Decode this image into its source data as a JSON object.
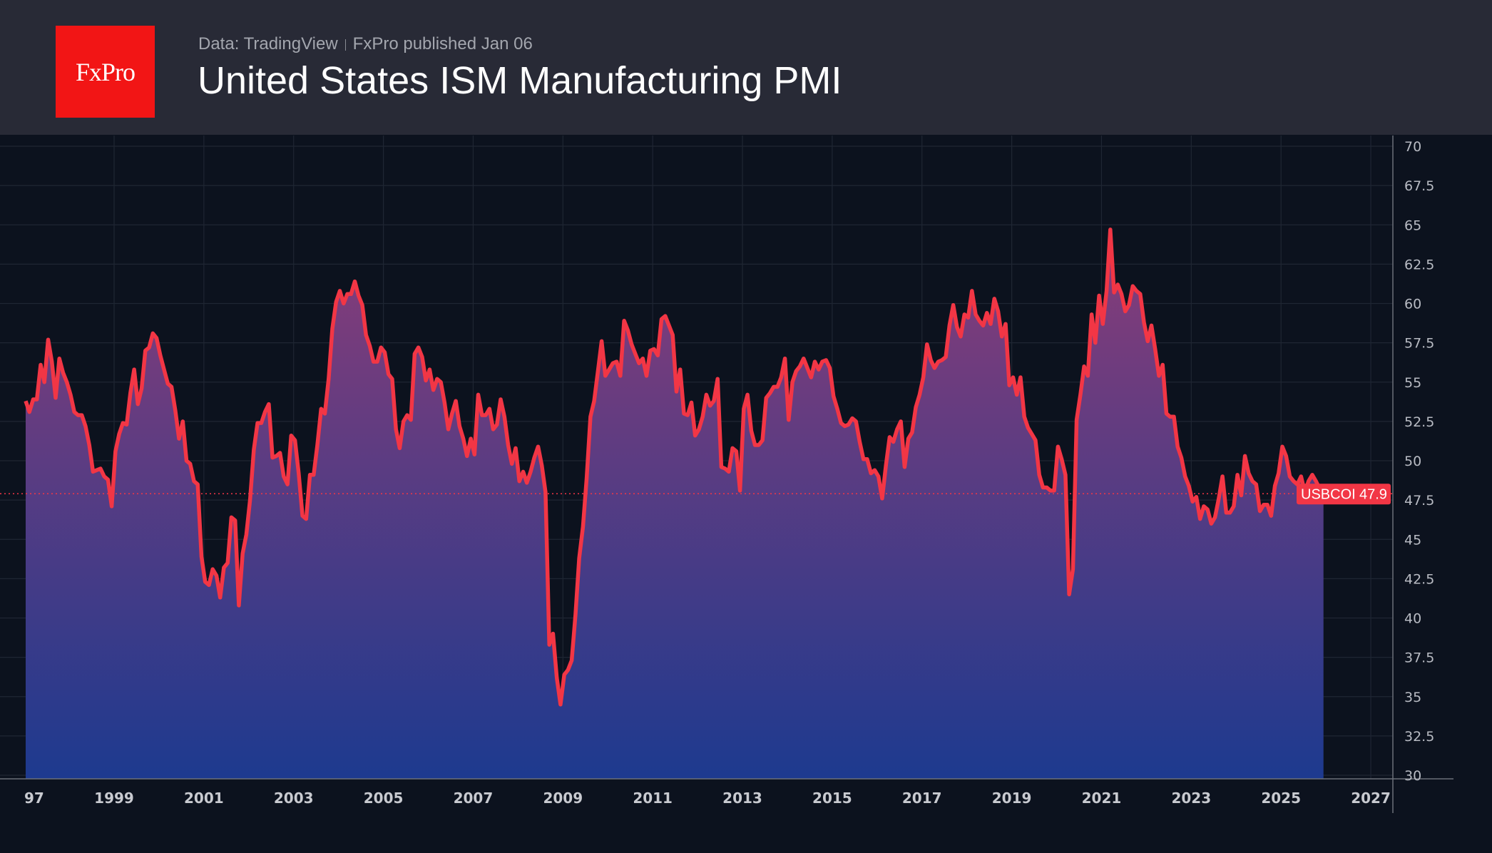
{
  "header": {
    "logo_text": "FxPro",
    "source": "Data: TradingView",
    "published": "FxPro published Jan 06",
    "title": "United States ISM Manufacturing PMI"
  },
  "colors": {
    "line": "#f23645",
    "fill_top": "#8a3d78",
    "fill_bottom": "#1d3a8f",
    "background": "#0c121e",
    "header": "#282a36"
  },
  "chart_data": {
    "type": "area",
    "title": "United States ISM Manufacturing PMI",
    "series_label": "USBCOI",
    "last_value": "47.9",
    "x_start": "1997-01",
    "frequency": "monthly",
    "xlim": [
      1997,
      2028.2
    ],
    "ylim": [
      30,
      70
    ],
    "grid": true,
    "y_ticks": [
      "30",
      "32.5",
      "35",
      "37.5",
      "40",
      "42.5",
      "45",
      "47.5",
      "50",
      "52.5",
      "55",
      "57.5",
      "60",
      "62.5",
      "65",
      "67.5",
      "70"
    ],
    "x_ticks": [
      "97",
      "1999",
      "2001",
      "2003",
      "2005",
      "2007",
      "2009",
      "2011",
      "2013",
      "2015",
      "2017",
      "2019",
      "2021",
      "2023",
      "2025",
      "2027"
    ],
    "values": [
      53.8,
      53.1,
      53.9,
      53.9,
      56.1,
      55.0,
      57.7,
      56.3,
      54.0,
      56.5,
      55.6,
      55.0,
      54.2,
      53.1,
      52.9,
      52.9,
      52.2,
      51.0,
      49.3,
      49.4,
      49.5,
      49.0,
      48.8,
      47.1,
      50.6,
      51.7,
      52.4,
      52.3,
      54.3,
      55.8,
      53.6,
      54.6,
      57.0,
      57.2,
      58.1,
      57.8,
      56.7,
      55.8,
      54.9,
      54.7,
      53.2,
      51.4,
      52.5,
      50.0,
      49.8,
      48.7,
      48.5,
      43.9,
      42.3,
      42.1,
      43.1,
      42.7,
      41.3,
      43.2,
      43.5,
      46.4,
      46.2,
      40.8,
      44.1,
      45.3,
      47.5,
      50.7,
      52.4,
      52.4,
      53.1,
      53.6,
      50.2,
      50.3,
      50.5,
      49.0,
      48.5,
      51.6,
      51.3,
      49.2,
      46.5,
      46.3,
      49.1,
      49.1,
      51.0,
      53.3,
      53.0,
      55.2,
      58.4,
      60.1,
      60.8,
      60.0,
      60.6,
      60.6,
      61.4,
      60.5,
      59.9,
      58.0,
      57.3,
      56.3,
      56.3,
      57.2,
      56.9,
      55.5,
      55.2,
      52.0,
      50.8,
      52.5,
      52.9,
      52.6,
      56.8,
      57.2,
      56.6,
      55.1,
      55.8,
      54.5,
      55.2,
      55.0,
      53.7,
      52.0,
      53.0,
      53.8,
      52.2,
      51.4,
      50.3,
      51.4,
      50.4,
      54.2,
      52.9,
      52.9,
      53.3,
      52.0,
      52.3,
      53.9,
      52.8,
      51.0,
      49.8,
      50.8,
      48.7,
      49.3,
      48.6,
      49.3,
      50.2,
      50.9,
      49.7,
      48.0,
      38.3,
      39.0,
      36.2,
      34.5,
      36.4,
      36.7,
      37.3,
      40.2,
      43.8,
      45.8,
      48.9,
      52.8,
      53.8,
      55.7,
      57.6,
      55.4,
      55.8,
      56.2,
      56.3,
      55.4,
      58.9,
      58.3,
      57.4,
      56.8,
      56.2,
      56.5,
      55.4,
      57.0,
      57.1,
      56.7,
      59.0,
      59.2,
      58.6,
      58.0,
      54.4,
      55.8,
      53.0,
      52.9,
      53.7,
      51.6,
      52.0,
      52.8,
      54.2,
      53.5,
      53.8,
      55.2,
      49.6,
      49.5,
      49.3,
      50.8,
      50.6,
      48.1,
      53.3,
      54.2,
      51.9,
      51.0,
      51.0,
      51.3,
      54.0,
      54.3,
      54.7,
      54.7,
      55.3,
      56.5,
      52.6,
      55.0,
      55.7,
      56.0,
      56.5,
      55.9,
      55.3,
      56.3,
      55.8,
      56.3,
      56.4,
      55.9,
      54.1,
      53.3,
      52.4,
      52.2,
      52.3,
      52.7,
      52.5,
      51.2,
      50.1,
      50.1,
      49.2,
      49.4,
      49.0,
      47.6,
      49.7,
      51.5,
      51.2,
      52.0,
      52.5,
      49.6,
      51.4,
      51.8,
      53.4,
      54.2,
      55.3,
      57.4,
      56.4,
      55.9,
      56.3,
      56.4,
      56.6,
      58.6,
      59.9,
      58.5,
      57.9,
      59.3,
      59.1,
      60.8,
      59.3,
      58.9,
      58.6,
      59.4,
      58.7,
      60.3,
      59.5,
      57.9,
      58.7,
      54.8,
      55.3,
      54.2,
      55.3,
      52.8,
      52.1,
      51.7,
      51.3,
      49.1,
      48.3,
      48.3,
      48.1,
      48.1,
      50.9,
      50.1,
      49.1,
      41.5,
      43.1,
      52.6,
      54.2,
      56.0,
      55.4,
      59.3,
      57.5,
      60.5,
      58.7,
      60.8,
      64.7,
      60.7,
      61.2,
      60.6,
      59.5,
      59.9,
      61.1,
      60.8,
      60.6,
      58.8,
      57.6,
      58.6,
      57.1,
      55.4,
      56.1,
      53.0,
      52.8,
      52.8,
      50.9,
      50.2,
      49.0,
      48.4,
      47.4,
      47.7,
      46.3,
      47.1,
      46.9,
      46.0,
      46.4,
      47.6,
      49.0,
      46.7,
      46.7,
      47.1,
      49.1,
      47.8,
      50.3,
      49.2,
      48.7,
      48.5,
      46.8,
      47.2,
      47.2,
      46.5,
      48.4,
      49.2,
      50.9,
      50.3,
      49.0,
      48.7,
      48.5,
      49.0,
      48.0,
      48.7,
      49.1,
      48.7,
      48.2,
      47.9
    ]
  }
}
